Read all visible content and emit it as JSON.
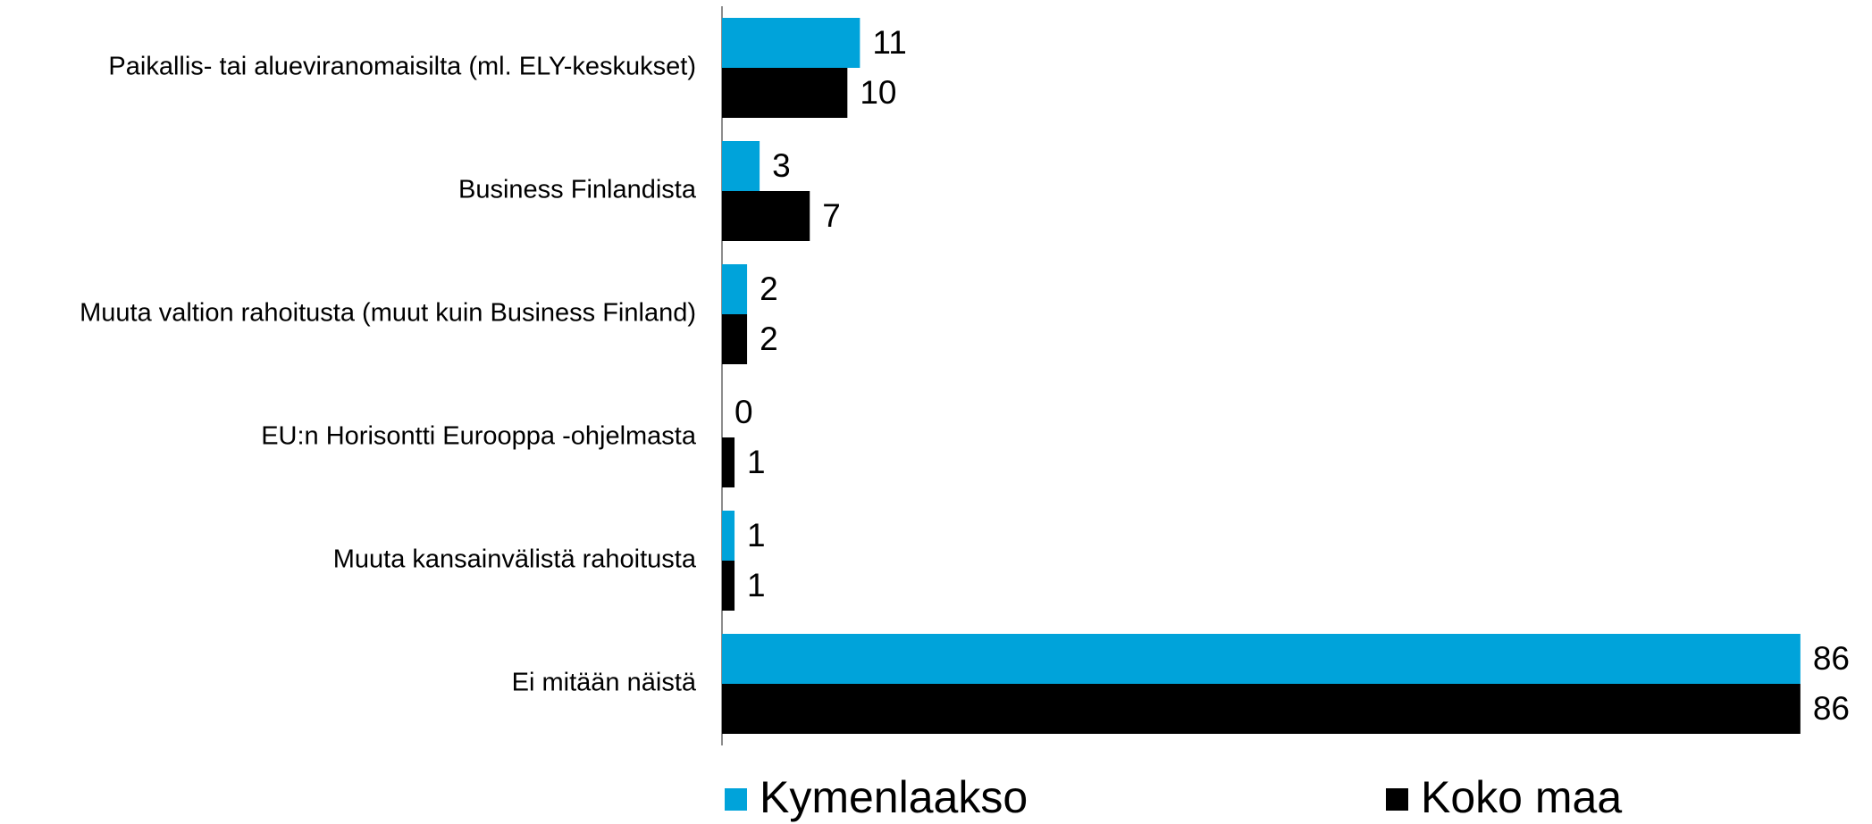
{
  "chart_data": {
    "type": "hbar",
    "categories": [
      "Paikallis- tai alueviranomaisilta (ml. ELY-keskukset)",
      "Business Finlandista",
      "Muuta valtion rahoitusta (muut kuin Business Finland)",
      "EU:n Horisontti Eurooppa -ohjelmasta",
      "Muuta kansainvälistä rahoitusta",
      "Ei mitään näistä"
    ],
    "series": [
      {
        "name": "Kymenlaakso",
        "color": "#00a3da",
        "values": [
          11,
          3,
          2,
          0,
          1,
          86
        ]
      },
      {
        "name": "Koko maa",
        "color": "#000000",
        "values": [
          10,
          7,
          2,
          1,
          1,
          86
        ]
      }
    ],
    "xlim": [
      0,
      90
    ],
    "legend": "bottom"
  }
}
